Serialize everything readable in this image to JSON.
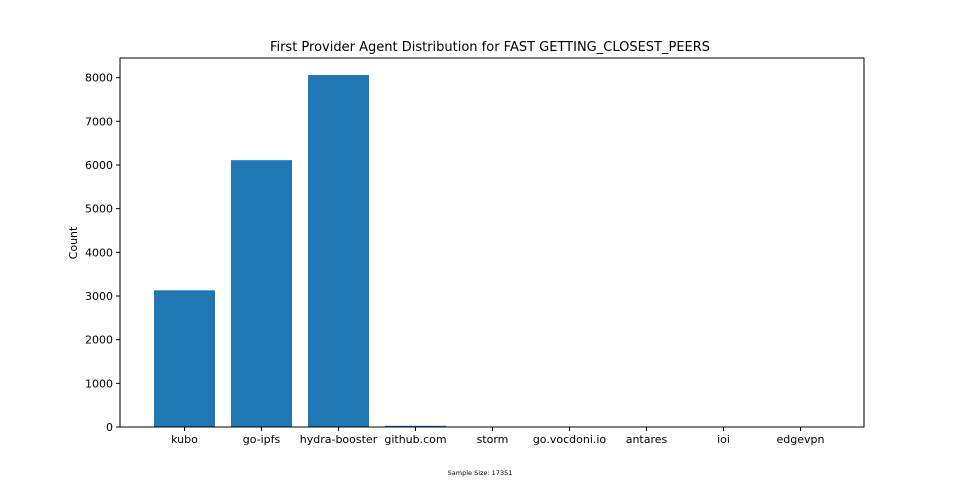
{
  "chart_data": {
    "type": "bar",
    "title": "First Provider Agent Distribution for FAST GETTING_CLOSEST_PEERS",
    "xlabel": "",
    "ylabel": "Count",
    "categories": [
      "kubo",
      "go-ipfs",
      "hydra-booster",
      "github.com",
      "storm",
      "go.vocdoni.io",
      "antares",
      "ioi",
      "edgevpn"
    ],
    "values": [
      3130,
      6110,
      8060,
      28,
      8,
      6,
      4,
      3,
      2
    ],
    "ylim": [
      0,
      8450
    ],
    "yticks": [
      "0",
      "1000",
      "2000",
      "3000",
      "4000",
      "5000",
      "6000",
      "7000",
      "8000"
    ],
    "grid": false,
    "bar_color": "#1f77b4",
    "annotations": [
      "Sample Size: 17351"
    ]
  }
}
